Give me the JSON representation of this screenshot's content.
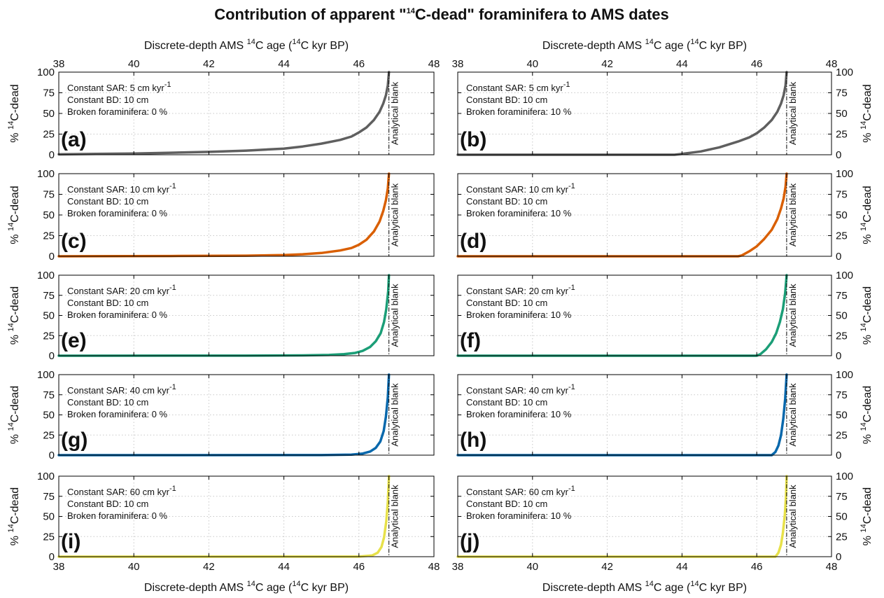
{
  "chart_data": {
    "type": "line",
    "title": {
      "pre": "Contribution of apparent \"",
      "sup": "14",
      "post": "C-dead\" foraminifera to AMS dates"
    },
    "xlabel": {
      "pre": "Discrete-depth AMS ",
      "sup1": "14",
      "mid": "C age (",
      "sup2": "14",
      "post": "C kyr BP)"
    },
    "ylabel": {
      "pre": "% ",
      "sup": "14",
      "post": "C-dead"
    },
    "xlim": [
      38,
      48
    ],
    "ylim": [
      0,
      100
    ],
    "x_ticks": [
      "38",
      "40",
      "42",
      "44",
      "46",
      "48"
    ],
    "y_ticks": [
      "0",
      "25",
      "50",
      "75",
      "100"
    ],
    "grid": true,
    "blank_age": 46.8,
    "blank_label": "Analytical blank",
    "bd_text": "Constant BD: 10 cm",
    "panels": [
      {
        "label": "(a)",
        "sar_pre": "Constant SAR: 5 cm kyr",
        "sar_sup": "-1",
        "broken": "Broken foraminifera: 0 %",
        "color": "#5f5f5f",
        "x": [
          38,
          39,
          40,
          41,
          42,
          43,
          44,
          44.5,
          45,
          45.5,
          45.8,
          46,
          46.2,
          46.4,
          46.55,
          46.65,
          46.72,
          46.77,
          46.8
        ],
        "y": [
          0.5,
          1,
          1.5,
          2.5,
          3.5,
          5,
          7.5,
          10,
          13.5,
          18,
          22,
          27,
          33,
          42,
          52,
          62,
          72,
          84,
          100
        ]
      },
      {
        "label": "(b)",
        "sar_pre": "Constant SAR: 5 cm kyr",
        "sar_sup": "-1",
        "broken": "Broken foraminifera: 10 %",
        "color": "#5f5f5f",
        "x": [
          38,
          43.8,
          44,
          44.5,
          45,
          45.5,
          45.8,
          46,
          46.2,
          46.4,
          46.55,
          46.65,
          46.72,
          46.77,
          46.8
        ],
        "y": [
          0,
          0,
          1,
          4,
          9,
          16,
          21,
          26,
          33,
          42,
          52,
          62,
          72,
          84,
          100
        ]
      },
      {
        "label": "(c)",
        "sar_pre": "Constant SAR: 10 cm kyr",
        "sar_sup": "-1",
        "broken": "Broken foraminifera: 0 %",
        "color": "#d95f02",
        "x": [
          38,
          41,
          43,
          44,
          44.5,
          45,
          45.5,
          45.8,
          46,
          46.2,
          46.4,
          46.55,
          46.65,
          46.72,
          46.77,
          46.8
        ],
        "y": [
          0,
          0.3,
          0.8,
          1.5,
          2.5,
          4,
          7,
          10,
          14,
          20,
          30,
          42,
          55,
          68,
          82,
          100
        ]
      },
      {
        "label": "(d)",
        "sar_pre": "Constant SAR: 10 cm kyr",
        "sar_sup": "-1",
        "broken": "Broken foraminifera: 10 %",
        "color": "#d95f02",
        "x": [
          38,
          45.5,
          45.6,
          45.8,
          46,
          46.2,
          46.4,
          46.55,
          46.65,
          46.72,
          46.77,
          46.8
        ],
        "y": [
          0,
          0,
          1,
          6,
          12,
          21,
          32,
          45,
          58,
          70,
          84,
          100
        ]
      },
      {
        "label": "(e)",
        "sar_pre": "Constant SAR: 20 cm kyr",
        "sar_sup": "-1",
        "broken": "Broken foraminifera: 0 %",
        "color": "#1b9e77",
        "x": [
          38,
          43,
          44.5,
          45.2,
          45.6,
          45.9,
          46.1,
          46.3,
          46.45,
          46.58,
          46.67,
          46.73,
          46.78,
          46.8
        ],
        "y": [
          0,
          0.1,
          0.4,
          1,
          2,
          3.5,
          6,
          11,
          18,
          28,
          42,
          58,
          80,
          100
        ]
      },
      {
        "label": "(f)",
        "sar_pre": "Constant SAR: 20 cm kyr",
        "sar_sup": "-1",
        "broken": "Broken foraminifera: 10 %",
        "color": "#1b9e77",
        "x": [
          38,
          46,
          46.1,
          46.25,
          46.4,
          46.52,
          46.62,
          46.7,
          46.76,
          46.8
        ],
        "y": [
          0,
          0,
          2,
          8,
          17,
          28,
          42,
          58,
          78,
          100
        ]
      },
      {
        "label": "(g)",
        "sar_pre": "Constant SAR: 40 cm kyr",
        "sar_sup": "-1",
        "broken": "Broken foraminifera: 0 %",
        "color": "#0868ac",
        "x": [
          38,
          45,
          45.8,
          46.1,
          46.3,
          46.45,
          46.57,
          46.66,
          46.72,
          46.77,
          46.8
        ],
        "y": [
          0,
          0.1,
          0.6,
          2,
          4.5,
          9,
          17,
          30,
          48,
          72,
          100
        ]
      },
      {
        "label": "(h)",
        "sar_pre": "Constant SAR: 40 cm kyr",
        "sar_sup": "-1",
        "broken": "Broken foraminifera: 10 %",
        "color": "#0868ac",
        "x": [
          38,
          46.4,
          46.5,
          46.58,
          46.65,
          46.71,
          46.76,
          46.8
        ],
        "y": [
          0,
          0,
          4,
          12,
          25,
          45,
          70,
          100
        ]
      },
      {
        "label": "(i)",
        "sar_pre": "Constant SAR: 60 cm kyr",
        "sar_sup": "-1",
        "broken": "Broken foraminifera: 0 %",
        "color": "#e7e14a",
        "x": [
          38,
          46,
          46.35,
          46.5,
          46.6,
          46.67,
          46.73,
          46.77,
          46.8
        ],
        "y": [
          0,
          0.1,
          1.5,
          5,
          12,
          24,
          44,
          68,
          100
        ]
      },
      {
        "label": "(j)",
        "sar_pre": "Constant SAR: 60 cm kyr",
        "sar_sup": "-1",
        "broken": "Broken foraminifera: 10 %",
        "color": "#e7e14a",
        "x": [
          38,
          46.5,
          46.58,
          46.65,
          46.7,
          46.75,
          46.78,
          46.8
        ],
        "y": [
          0,
          0,
          5,
          15,
          30,
          52,
          74,
          100
        ]
      }
    ]
  }
}
